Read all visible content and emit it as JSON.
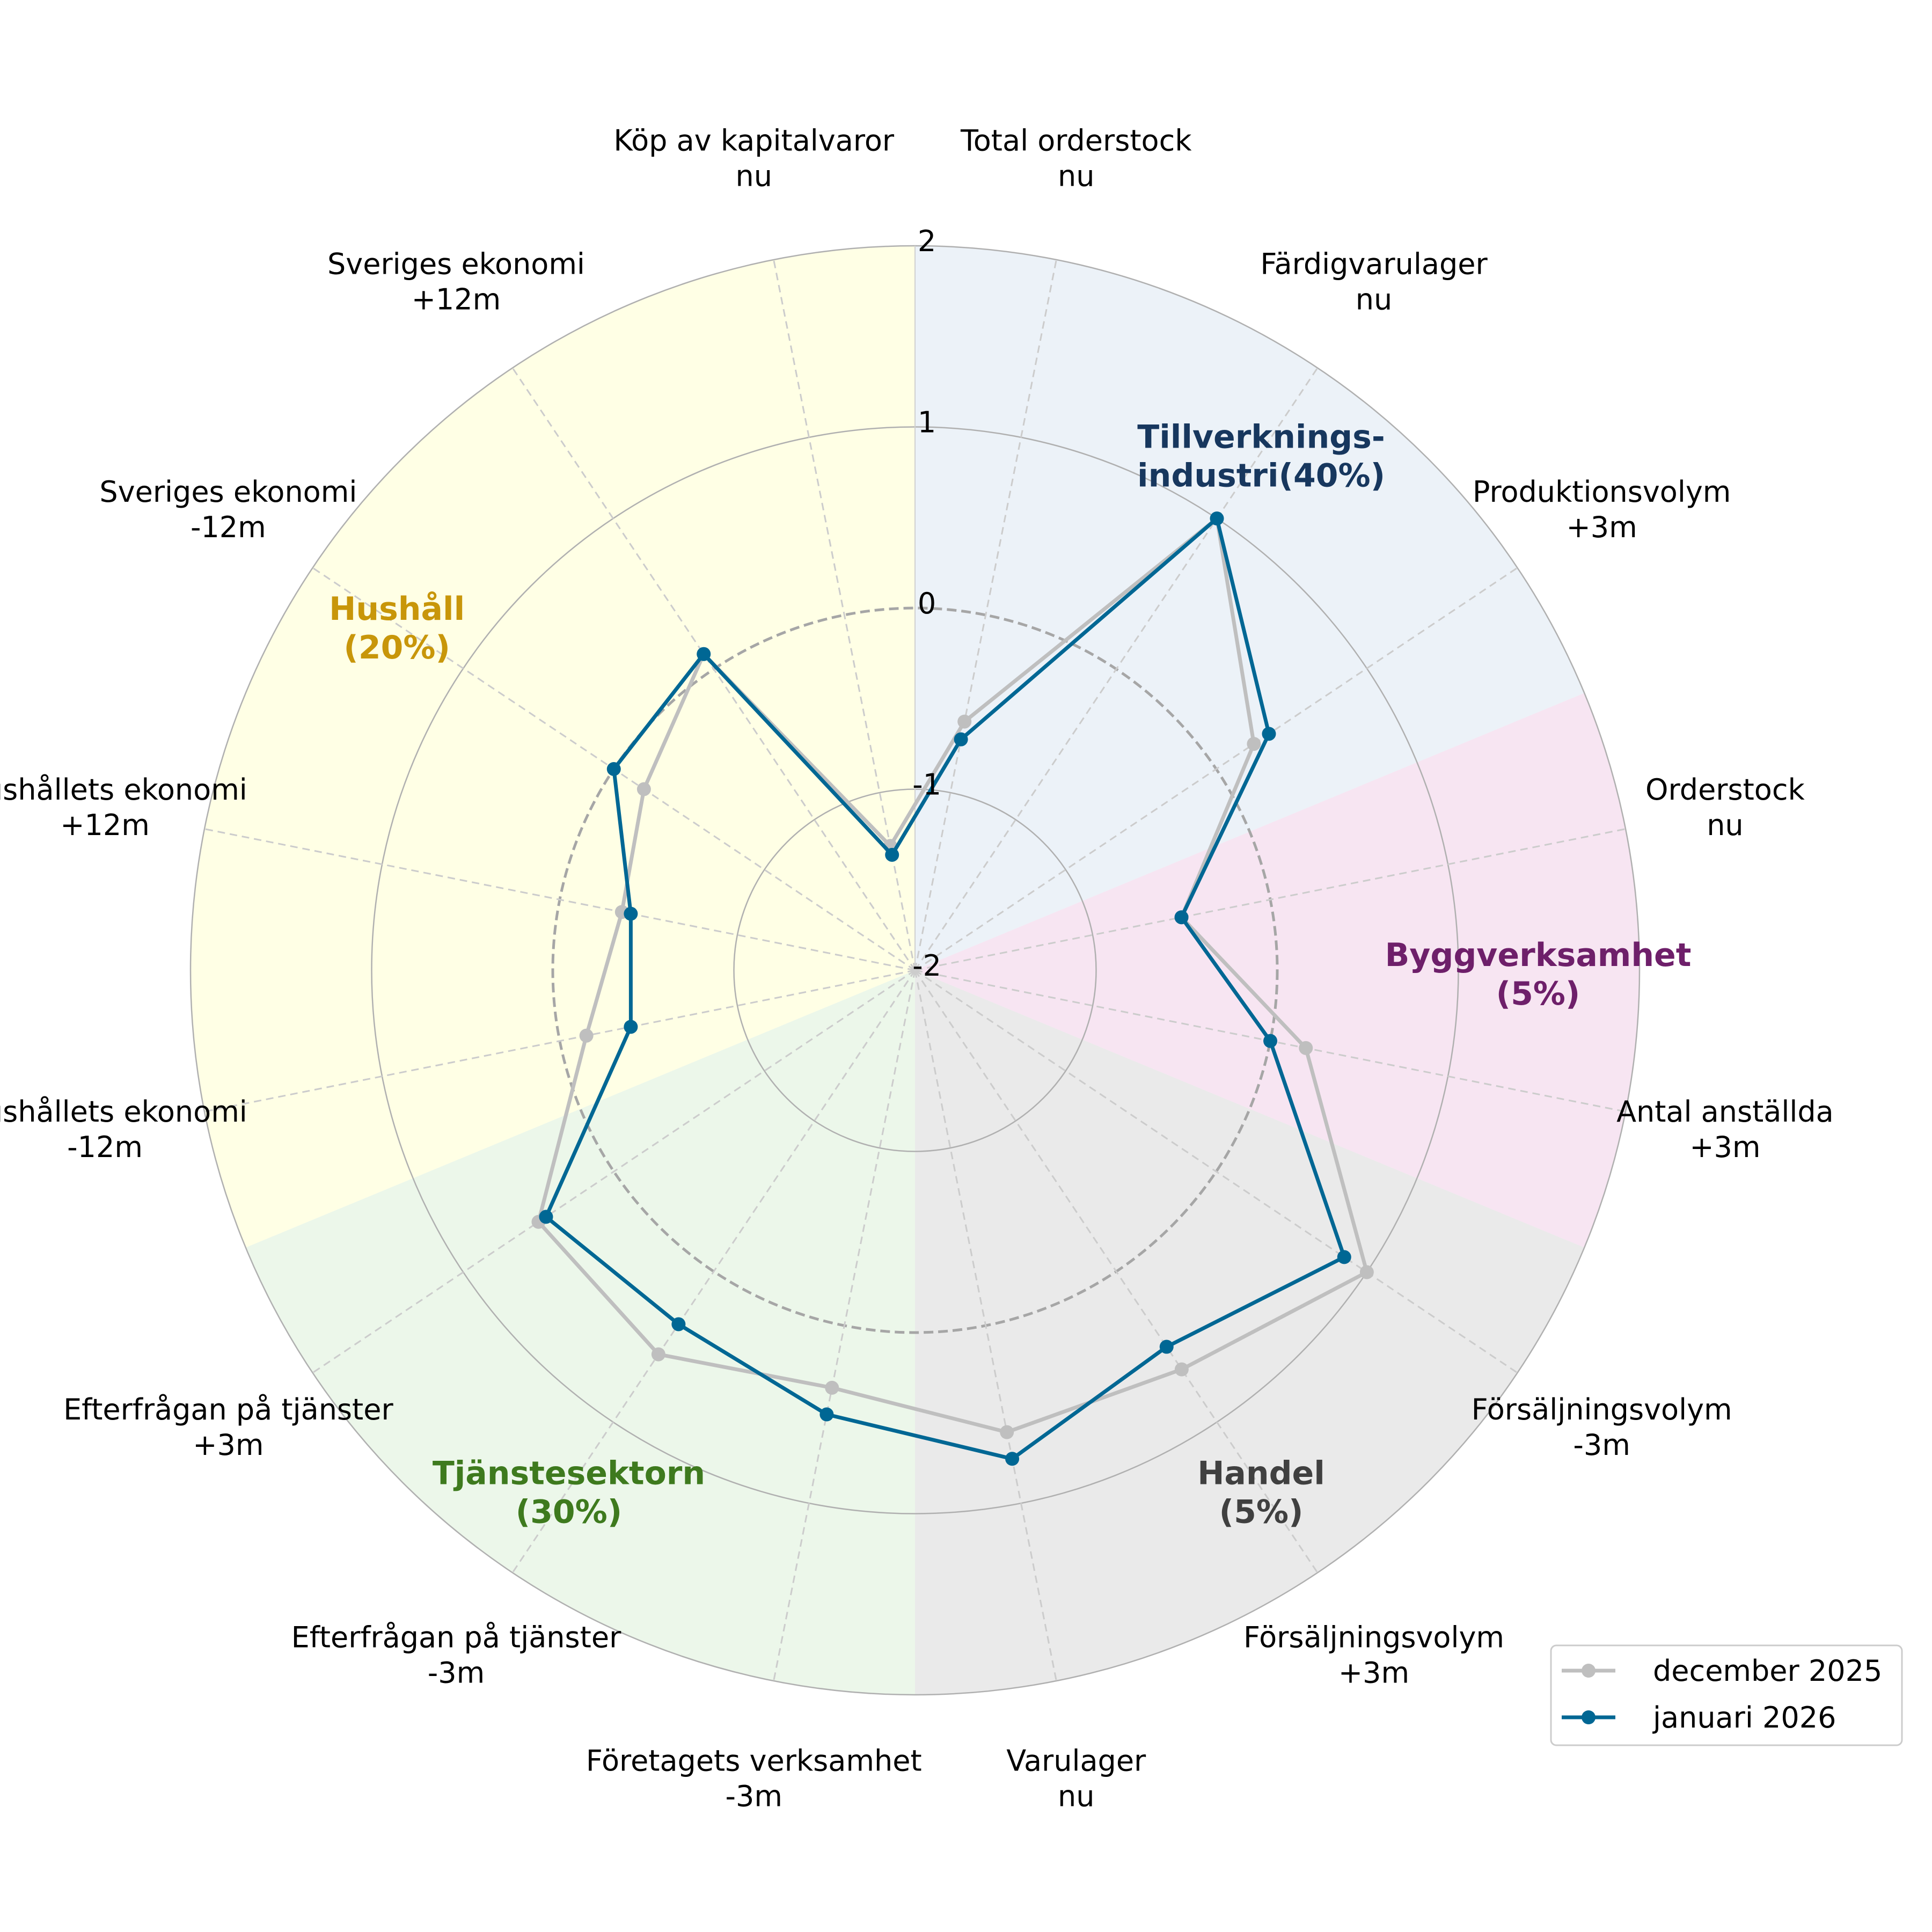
{
  "chart_data": {
    "type": "radar",
    "r_range": [
      -2,
      2
    ],
    "ticks": [
      {
        "value": -2,
        "label": "-2"
      },
      {
        "value": -1,
        "label": "-1"
      },
      {
        "value": 0,
        "label": "0"
      },
      {
        "value": 1,
        "label": "1"
      },
      {
        "value": 2,
        "label": "2"
      }
    ],
    "grid": true,
    "zero_line": "dashed",
    "legend_position": "bottom-right",
    "categories": [
      {
        "line1": "Total orderstock",
        "line2": "nu"
      },
      {
        "line1": "Färdigvarulager",
        "line2": "nu"
      },
      {
        "line1": "Produktionsvolym",
        "line2": "+3m"
      },
      {
        "line1": "Orderstock",
        "line2": "nu"
      },
      {
        "line1": "Antal anställda",
        "line2": "+3m"
      },
      {
        "line1": "Försäljningsvolym",
        "line2": "-3m"
      },
      {
        "line1": "Försäljningsvolym",
        "line2": "+3m"
      },
      {
        "line1": "Varulager",
        "line2": "nu"
      },
      {
        "line1": "Företagets verksamhet",
        "line2": "-3m"
      },
      {
        "line1": "Efterfrågan på tjänster",
        "line2": "-3m"
      },
      {
        "line1": "Efterfrågan på tjänster",
        "line2": "+3m"
      },
      {
        "line1": "Hushållets ekonomi",
        "line2": "-12m"
      },
      {
        "line1": "Hushållets ekonomi",
        "line2": "+12m"
      },
      {
        "line1": "Sveriges ekonomi",
        "line2": "-12m"
      },
      {
        "line1": "Sveriges ekonomi",
        "line2": "+12m"
      },
      {
        "line1": "Köp av kapitalvaror",
        "line2": "nu"
      }
    ],
    "sectors": [
      {
        "line1": "Tillverknings-",
        "line2": "industri(40%)",
        "start_index": 0,
        "count": 3,
        "fill": "#dce8f3",
        "text_color": "#17375e"
      },
      {
        "line1": "Byggverksamhet",
        "line2": "(5%)",
        "start_index": 3,
        "count": 2,
        "fill": "#f1d0e8",
        "text_color": "#6e1f6a"
      },
      {
        "line1": "Handel",
        "line2": "(5%)",
        "start_index": 5,
        "count": 3,
        "fill": "#d9d9d9",
        "text_color": "#404040"
      },
      {
        "line1": "Tjänstesektorn",
        "line2": "(30%)",
        "start_index": 8,
        "count": 3,
        "fill": "#dcf0d8",
        "text_color": "#3e7a1e"
      },
      {
        "line1": "Hushåll",
        "line2": "(20%)",
        "start_index": 11,
        "count": 5,
        "fill": "#ffffd0",
        "text_color": "#c8960a"
      }
    ],
    "series": [
      {
        "name": "december 2025",
        "color": "#bfbfbf",
        "values": [
          -0.6,
          1.0,
          0.25,
          -0.5,
          0.2,
          1.0,
          0.65,
          0.6,
          0.35,
          0.55,
          0.5,
          -0.15,
          -0.35,
          -0.2,
          0.1,
          -1.3
        ]
      },
      {
        "name": "januari 2026",
        "color": "#006794",
        "values": [
          -0.7,
          1.0,
          0.35,
          -0.5,
          0.0,
          0.85,
          0.5,
          0.75,
          0.5,
          0.35,
          0.45,
          -0.4,
          -0.4,
          0.0,
          0.1,
          -1.35
        ]
      }
    ]
  }
}
